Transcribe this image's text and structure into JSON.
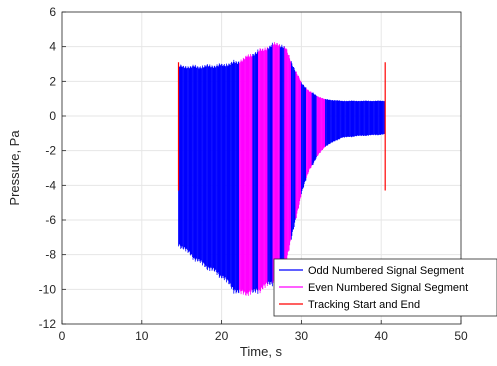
{
  "chart_data": {
    "type": "line",
    "xlabel": "Time, s",
    "ylabel": "Pressure, Pa",
    "xlim": [
      0,
      50
    ],
    "ylim": [
      -12,
      6
    ],
    "xticks": [
      0,
      10,
      20,
      30,
      40,
      50
    ],
    "yticks": [
      -12,
      -10,
      -8,
      -6,
      -4,
      -2,
      0,
      2,
      4,
      6
    ],
    "grid": true,
    "legend_position": "bottom-right",
    "series": [
      {
        "name": "Odd Numbered Signal Segment",
        "color": "#0000ff",
        "segments": [
          [
            14.6,
            22.2
          ],
          [
            23.9,
            24.6
          ],
          [
            25.8,
            26.4
          ],
          [
            27.3,
            27.9
          ],
          [
            28.7,
            29.3
          ],
          [
            30.0,
            30.6
          ],
          [
            31.3,
            31.9
          ],
          [
            33.0,
            40.5
          ]
        ]
      },
      {
        "name": "Even Numbered Signal Segment",
        "color": "#ff00ff",
        "segments": [
          [
            22.2,
            23.9
          ],
          [
            24.6,
            25.8
          ],
          [
            26.4,
            27.3
          ],
          [
            27.9,
            28.7
          ],
          [
            29.3,
            30.0
          ],
          [
            30.6,
            31.3
          ],
          [
            31.9,
            33.0
          ]
        ]
      },
      {
        "name": "Tracking Start and End",
        "color": "#ff0000",
        "markers": [
          {
            "x": 14.6,
            "y_min": -4.3,
            "y_max": 3.1
          },
          {
            "x": 40.5,
            "y_min": -4.3,
            "y_max": 3.1
          }
        ]
      }
    ],
    "envelope": {
      "x": [
        14.6,
        17,
        20,
        22,
        24,
        26,
        27,
        28,
        29,
        30,
        31,
        32,
        33,
        35,
        37,
        40.5
      ],
      "upper": [
        3.0,
        3.0,
        3.1,
        3.3,
        3.8,
        4.2,
        4.4,
        4.1,
        3.0,
        2.0,
        1.5,
        1.2,
        1.0,
        0.9,
        0.9,
        0.9
      ],
      "lower": [
        -7.6,
        -8.6,
        -9.5,
        -10.5,
        -10.5,
        -10.0,
        -9.7,
        -8.8,
        -6.8,
        -4.6,
        -3.2,
        -2.4,
        -1.8,
        -1.3,
        -1.2,
        -1.1
      ]
    }
  }
}
